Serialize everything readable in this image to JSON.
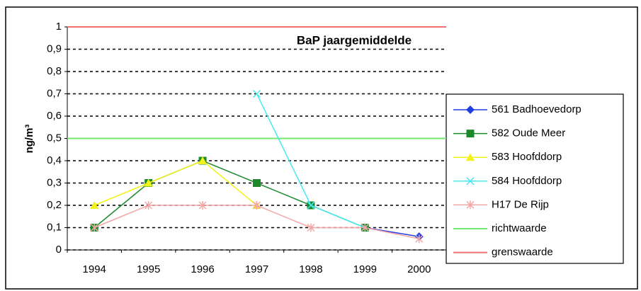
{
  "chart_data": {
    "type": "line",
    "title": "BaP jaargemiddelde",
    "y_label": "ng/m³",
    "categories": [
      "1994",
      "1995",
      "1996",
      "1997",
      "1998",
      "1999",
      "2000"
    ],
    "series": [
      {
        "name": "561 Badhoevedorp",
        "color": "#1f3fe0",
        "marker": "diamond",
        "values": [
          null,
          null,
          null,
          null,
          null,
          0.1,
          0.06
        ]
      },
      {
        "name": "582 Oude Meer",
        "color": "#1c8a2a",
        "marker": "square",
        "values": [
          0.1,
          0.3,
          0.4,
          0.3,
          0.2,
          0.1,
          null
        ]
      },
      {
        "name": "583 Hoofddorp",
        "color": "#f2f21a",
        "marker": "triangle",
        "values": [
          0.2,
          0.3,
          0.4,
          0.2,
          null,
          null,
          null
        ]
      },
      {
        "name": "584 Hoofddorp",
        "color": "#4de8f0",
        "marker": "cross",
        "values": [
          null,
          null,
          null,
          0.7,
          0.2,
          0.1,
          null
        ]
      },
      {
        "name": "H17 De Rijp",
        "color": "#f4a6a6",
        "marker": "star",
        "values": [
          0.1,
          0.2,
          0.2,
          0.2,
          0.1,
          0.1,
          0.05
        ]
      }
    ],
    "reference_lines": [
      {
        "name": "richtwaarde",
        "color": "#6fe86f",
        "value": 0.5
      },
      {
        "name": "grenswaarde",
        "color": "#f07070",
        "value": 1
      }
    ],
    "ylim": [
      0,
      1
    ],
    "yticks": [
      0,
      {
        "value": 0.1,
        "label": "0,1"
      },
      {
        "value": 0.2,
        "label": "0,2"
      },
      {
        "value": 0.3,
        "label": "0,3"
      },
      {
        "value": 0.4,
        "label": "0,4"
      },
      {
        "value": 0.5,
        "label": "0,5"
      },
      {
        "value": 0.6,
        "label": "0,6"
      },
      {
        "value": 0.7,
        "label": "0,7"
      },
      {
        "value": 0.8,
        "label": "0,8"
      },
      {
        "value": 0.9,
        "label": "0,9"
      },
      1
    ],
    "grid": true,
    "legend": "right"
  }
}
